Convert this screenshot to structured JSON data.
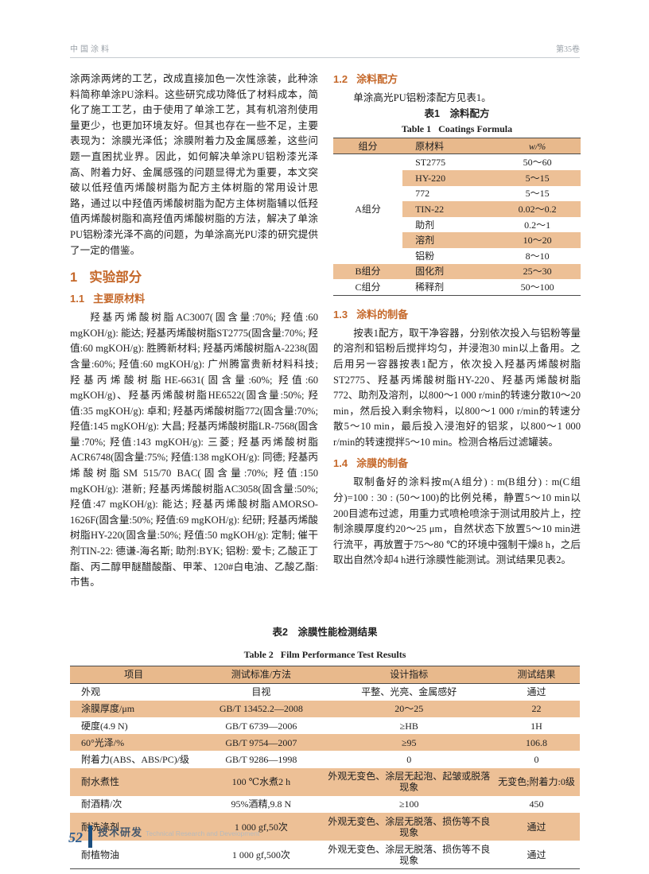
{
  "colors": {
    "accent_orange": "#c5682a",
    "table_shade": "#edc096",
    "table_header_shade": "#e8b98c",
    "footer_navy": "#1c4e7d",
    "header_gray": "#9aa1a8"
  },
  "page_header": {
    "journal": "中国涂料",
    "volume": "第35卷"
  },
  "left_column": {
    "intro": "涂两涂两烤的工艺，改成直接加色一次性涂装，此种涂料简称单涂PU涂料。这些研究成功降低了材料成本，简化了施工工艺，由于使用了单涂工艺，其有机溶剂使用量更少，也更加环境友好。但其也存在一些不足，主要表现为：涂膜光泽低；涂膜附着力及金属感差，这些问题一直困扰业界。因此，如何解决单涂PU铝粉漆光泽高、附着力好、金属感强的问题显得尤为重要，本文突破以低羟值丙烯酸树脂为配方主体树脂的常用设计思路，通过以中羟值丙烯酸树脂为配方主体树脂辅以低羟值丙烯酸树脂和高羟值丙烯酸树脂的方法，解决了单涂PU铝粉漆光泽不高的问题，为单涂高光PU漆的研究提供了一定的借鉴。",
    "section1": {
      "number": "1",
      "title": "实验部分"
    },
    "section1_1": {
      "number": "1.1",
      "title": "主要原材料"
    },
    "materials_text": "羟基丙烯酸树脂AC3007(固含量:70%; 羟值:60 mgKOH/g): 能达; 羟基丙烯酸树脂ST2775(固含量:70%; 羟值:60 mgKOH/g): 胜腾新材料; 羟基丙烯酸树脂A-2238(固含量:60%; 羟值:60 mgKOH/g): 广州腾富贵新材料科技; 羟基丙烯酸树脂HE-6631(固含量:60%; 羟值:60 mgKOH/g)、羟基丙烯酸树脂HE6522(固含量:50%; 羟值:35 mgKOH/g): 卓和; 羟基丙烯酸树脂772(固含量:70%; 羟值:145 mgKOH/g): 大昌; 羟基丙烯酸树脂LR-7568(固含量:70%; 羟值:143 mgKOH/g): 三菱; 羟基丙烯酸树脂ACR6748(固含量:75%; 羟值:138 mgKOH/g): 同德; 羟基丙烯酸树脂SM 515/70 BAC(固含量:70%; 羟值:150 mgKOH/g): 湛新; 羟基丙烯酸树脂AC3058(固含量:50%; 羟值:47 mgKOH/g): 能达; 羟基丙烯酸树脂AMORSO-1626F(固含量:50%; 羟值:69 mgKOH/g): 纪研; 羟基丙烯酸树脂HY-220(固含量:50%; 羟值:50 mgKOH/g): 定制; 催干剂TIN-22: 德谦-海名斯; 助剂:BYK; 铝粉: 爱卡; 乙酸正丁酯、丙二醇甲醚醋酸酯、甲苯、120#白电油、乙酸乙酯: 市售。"
  },
  "right_column": {
    "section1_2": {
      "number": "1.2",
      "title": "涂料配方"
    },
    "section1_2_text": "单涂高光PU铝粉漆配方见表1。",
    "table1": {
      "title_cn": "表1　涂料配方",
      "title_en": "Table 1   Coatings Formula",
      "headers": [
        "组分",
        "原材料",
        "w/%"
      ],
      "group_a_label": "A组分",
      "group_a_rows": [
        [
          "ST2775",
          "50～60"
        ],
        [
          "HY-220",
          "5～15"
        ],
        [
          "772",
          "5～15"
        ],
        [
          "TIN-22",
          "0.02～0.2"
        ],
        [
          "助剂",
          "0.2～1"
        ],
        [
          "溶剂",
          "10～20"
        ],
        [
          "铝粉",
          "8～10"
        ]
      ],
      "rows_bc": [
        [
          "B组分",
          "固化剂",
          "25～30"
        ],
        [
          "C组分",
          "稀释剂",
          "50～100"
        ]
      ]
    },
    "section1_3": {
      "number": "1.3",
      "title": "涂料的制备"
    },
    "section1_3_text": "按表1配方，取干净容器，分别依次投入与铝粉等量的溶剂和铝粉后搅拌均匀，并浸泡30 min以上备用。之后用另一容器按表1配方，依次投入羟基丙烯酸树脂ST2775、羟基丙烯酸树脂HY-220、羟基丙烯酸树脂772、助剂及溶剂，以800～1 000 r/min的转速分散10～20 min，然后投入剩余物料，以800～1 000 r/min的转速分散5～10 min，最后投入浸泡好的铝浆，以800～1 000 r/min的转速搅拌5～10 min。检测合格后过滤罐装。",
    "section1_4": {
      "number": "1.4",
      "title": "涂膜的制备"
    },
    "section1_4_text": "取制备好的涂料按m(A组分) : m(B组分) : m(C组分)=100 : 30 : (50～100)的比例兑稀，静置5～10 min以200目滤布过滤，用重力式喷枪喷涂于测试用胶片上，控制涂膜厚度约20～25 μm，自然状态下放置5～10 min进行流平，再放置于75～80 ℃的环境中强制干燥8 h，之后取出自然冷却4 h进行涂膜性能测试。测试结果见表2。"
  },
  "table2": {
    "title_cn": "表2　涂膜性能检测结果",
    "title_en": "Table 2   Film Performance Test Results",
    "headers": [
      "项目",
      "测试标准/方法",
      "设计指标",
      "测试结果"
    ],
    "rows": [
      [
        "外观",
        "目视",
        "平整、光亮、金属感好",
        "通过"
      ],
      [
        "涂膜厚度/μm",
        "GB/T 13452.2—2008",
        "20～25",
        "22"
      ],
      [
        "硬度(4.9 N)",
        "GB/T 6739—2006",
        "≥HB",
        "1H"
      ],
      [
        "60°光泽/%",
        "GB/T 9754—2007",
        "≥95",
        "106.8"
      ],
      [
        "附着力(ABS、ABS/PC)/级",
        "GB/T 9286—1998",
        "0",
        "0"
      ],
      [
        "耐水煮性",
        "100 ℃水煮2 h",
        "外观无变色、涂层无起泡、起皱或脱落现象",
        "无变色;附着力:0级"
      ],
      [
        "耐酒精/次",
        "95%酒精,9.8 N",
        "≥100",
        "450"
      ],
      [
        "耐洗涤剂",
        "1 000 gf,50次",
        "外观无变色、涂层无脱落、损伤等不良现象",
        "通过"
      ],
      [
        "耐植物油",
        "1 000 gf,500次",
        "外观无变色、涂层无脱落、损伤等不良现象",
        "通过"
      ]
    ]
  },
  "footer": {
    "page_number": "52",
    "dept_cn": "技术研发",
    "dept_en": "Technical Research and Development"
  }
}
